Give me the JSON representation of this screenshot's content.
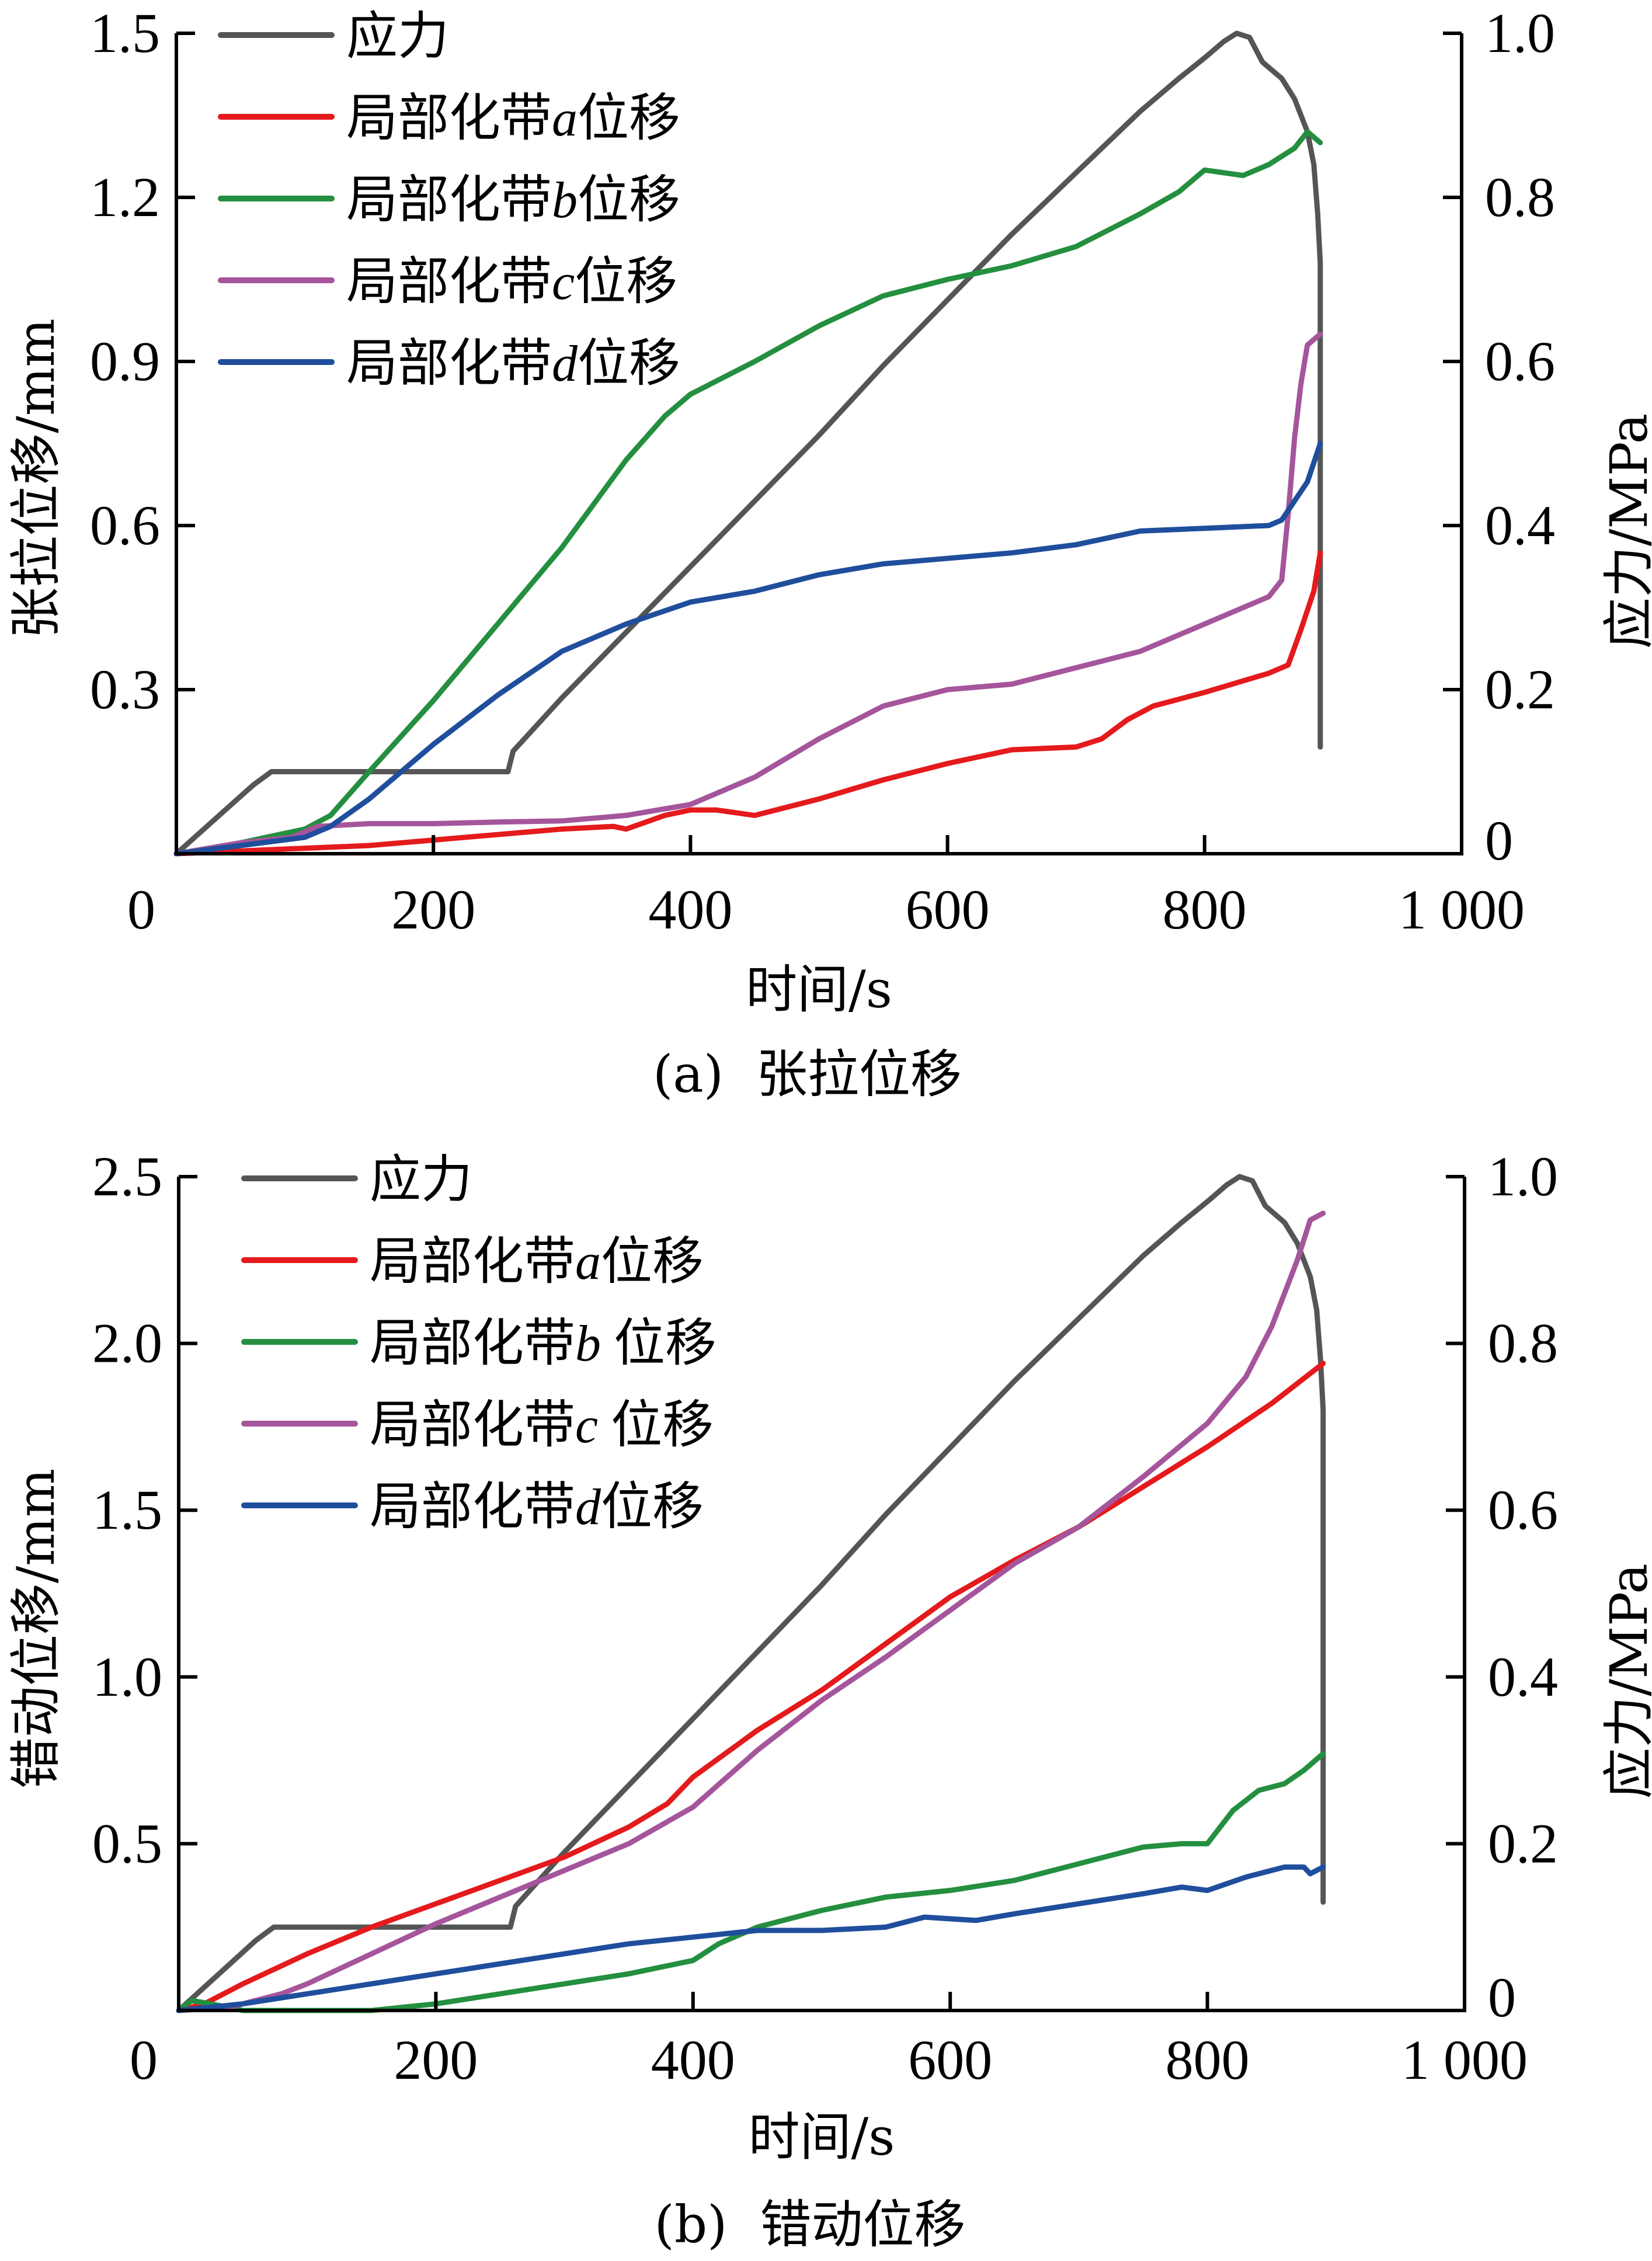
{
  "figure": {
    "panels": [
      "a",
      "b"
    ]
  },
  "chart_data": [
    {
      "type": "line",
      "id": "a",
      "title": "",
      "caption": "(a)  张拉位移",
      "xlabel": "时间/s",
      "ylabel": "张拉位移/mm",
      "y2label": "应力/MPa",
      "xlim": [
        0,
        1000
      ],
      "ylim": [
        0,
        1.5
      ],
      "y2lim": [
        0,
        1.0
      ],
      "xticks": [
        0,
        200,
        400,
        600,
        800,
        1000
      ],
      "xtick_labels": [
        "0",
        "200",
        "400",
        "600",
        "800",
        "1 000"
      ],
      "yticks": [
        0.3,
        0.6,
        0.9,
        1.2,
        1.5
      ],
      "ytick_labels": [
        "0.3",
        "0.6",
        "0.9",
        "1.2",
        "1.5"
      ],
      "y2ticks": [
        0,
        0.2,
        0.4,
        0.6,
        0.8,
        1.0
      ],
      "y2tick_labels": [
        "0",
        "0.2",
        "0.4",
        "0.6",
        "0.8",
        "1.0"
      ],
      "grid": false,
      "legend_position": "top-left",
      "series": [
        {
          "name": "应力",
          "legend_main": "应力",
          "legend_var": "",
          "legend_suffix": "",
          "axis": "right",
          "color": "#555555",
          "x": [
            0,
            20,
            40,
            60,
            74,
            90,
            150,
            200,
            258,
            262,
            300,
            350,
            400,
            450,
            500,
            550,
            600,
            650,
            700,
            750,
            780,
            800,
            815,
            825,
            835,
            845,
            860,
            870,
            880,
            885,
            888,
            890,
            890
          ],
          "y": [
            0,
            0.028,
            0.056,
            0.084,
            0.1,
            0.1,
            0.1,
            0.1,
            0.1,
            0.125,
            0.19,
            0.27,
            0.35,
            0.43,
            0.51,
            0.595,
            0.675,
            0.755,
            0.83,
            0.905,
            0.945,
            0.97,
            0.99,
            1.0,
            0.995,
            0.965,
            0.945,
            0.92,
            0.88,
            0.84,
            0.78,
            0.72,
            0.13
          ]
        },
        {
          "name": "局部化带a位移",
          "legend_main": "局部化带",
          "legend_var": "a",
          "legend_suffix": "位移",
          "axis": "left",
          "color": "#E41A1C",
          "x": [
            0,
            50,
            100,
            150,
            200,
            250,
            300,
            340,
            350,
            380,
            400,
            420,
            450,
            500,
            550,
            600,
            650,
            700,
            720,
            740,
            760,
            800,
            850,
            865,
            875,
            885,
            890
          ],
          "y": [
            0,
            0.005,
            0.01,
            0.015,
            0.025,
            0.035,
            0.045,
            0.05,
            0.045,
            0.07,
            0.08,
            0.08,
            0.07,
            0.1,
            0.135,
            0.165,
            0.19,
            0.195,
            0.21,
            0.245,
            0.27,
            0.295,
            0.33,
            0.345,
            0.41,
            0.48,
            0.55
          ]
        },
        {
          "name": "局部化带b位移",
          "legend_main": "局部化带",
          "legend_var": "b",
          "legend_suffix": "位移",
          "axis": "left",
          "color": "#248F3F",
          "x": [
            0,
            50,
            80,
            100,
            120,
            150,
            200,
            250,
            300,
            350,
            380,
            400,
            450,
            500,
            550,
            600,
            650,
            700,
            750,
            780,
            800,
            830,
            850,
            870,
            880,
            890
          ],
          "y": [
            0,
            0.02,
            0.035,
            0.045,
            0.07,
            0.15,
            0.28,
            0.42,
            0.56,
            0.72,
            0.8,
            0.84,
            0.9,
            0.965,
            1.02,
            1.05,
            1.075,
            1.11,
            1.17,
            1.21,
            1.25,
            1.24,
            1.26,
            1.29,
            1.32,
            1.3
          ]
        },
        {
          "name": "局部化带c位移",
          "legend_main": "局部化带",
          "legend_var": "c",
          "legend_suffix": "位移",
          "axis": "left",
          "color": "#A5559C",
          "x": [
            0,
            50,
            90,
            110,
            150,
            200,
            250,
            300,
            350,
            400,
            450,
            500,
            550,
            600,
            650,
            700,
            750,
            800,
            850,
            860,
            865,
            870,
            875,
            880,
            890
          ],
          "y": [
            0,
            0.02,
            0.03,
            0.05,
            0.055,
            0.055,
            0.058,
            0.06,
            0.07,
            0.09,
            0.14,
            0.21,
            0.27,
            0.3,
            0.31,
            0.34,
            0.37,
            0.42,
            0.47,
            0.5,
            0.62,
            0.76,
            0.86,
            0.93,
            0.95
          ]
        },
        {
          "name": "局部化带d位移",
          "legend_main": "局部化带",
          "legend_var": "d",
          "legend_suffix": "位移",
          "axis": "left",
          "color": "#1F4E9C",
          "x": [
            0,
            50,
            100,
            120,
            150,
            200,
            250,
            300,
            330,
            350,
            400,
            450,
            500,
            550,
            600,
            650,
            700,
            750,
            800,
            850,
            860,
            880,
            890
          ],
          "y": [
            0,
            0.015,
            0.03,
            0.05,
            0.1,
            0.2,
            0.29,
            0.37,
            0.4,
            0.42,
            0.46,
            0.48,
            0.51,
            0.53,
            0.54,
            0.55,
            0.565,
            0.59,
            0.595,
            0.6,
            0.61,
            0.68,
            0.75
          ]
        }
      ]
    },
    {
      "type": "line",
      "id": "b",
      "title": "",
      "caption": "(b)  错动位移",
      "xlabel": "时间/s",
      "ylabel": "错动位移/mm",
      "y2label": "应力/MPa",
      "xlim": [
        0,
        1000
      ],
      "ylim": [
        0,
        2.5
      ],
      "y2lim": [
        0,
        1.0
      ],
      "xticks": [
        0,
        200,
        400,
        600,
        800,
        1000
      ],
      "xtick_labels": [
        "0",
        "200",
        "400",
        "600",
        "800",
        "1 000"
      ],
      "yticks": [
        0.5,
        1.0,
        1.5,
        2.0,
        2.5
      ],
      "ytick_labels": [
        "0.5",
        "1.0",
        "1.5",
        "2.0",
        "2.5"
      ],
      "y2ticks": [
        0,
        0.2,
        0.4,
        0.6,
        0.8,
        1.0
      ],
      "y2tick_labels": [
        "0",
        "0.2",
        "0.4",
        "0.6",
        "0.8",
        "1.0"
      ],
      "grid": false,
      "legend_position": "top-left",
      "series": [
        {
          "name": "应力",
          "legend_main": "应力",
          "legend_var": "",
          "legend_suffix": "",
          "axis": "right",
          "color": "#555555",
          "x": [
            0,
            20,
            40,
            60,
            74,
            90,
            150,
            200,
            258,
            262,
            300,
            350,
            400,
            450,
            500,
            550,
            600,
            650,
            700,
            750,
            780,
            800,
            815,
            825,
            835,
            845,
            860,
            870,
            880,
            885,
            888,
            890,
            890
          ],
          "y": [
            0,
            0.028,
            0.056,
            0.084,
            0.1,
            0.1,
            0.1,
            0.1,
            0.1,
            0.125,
            0.19,
            0.27,
            0.35,
            0.43,
            0.51,
            0.595,
            0.675,
            0.755,
            0.83,
            0.905,
            0.945,
            0.97,
            0.99,
            1.0,
            0.995,
            0.965,
            0.945,
            0.92,
            0.88,
            0.84,
            0.78,
            0.72,
            0.13
          ]
        },
        {
          "name": "局部化带a位移",
          "legend_main": "局部化带",
          "legend_var": "a",
          "legend_suffix": "位移",
          "axis": "left",
          "color": "#E41A1C",
          "x": [
            0,
            20,
            50,
            100,
            150,
            200,
            250,
            300,
            350,
            380,
            400,
            450,
            500,
            550,
            600,
            650,
            700,
            750,
            800,
            850,
            890
          ],
          "y": [
            0,
            0.02,
            0.08,
            0.17,
            0.25,
            0.32,
            0.39,
            0.46,
            0.55,
            0.62,
            0.7,
            0.84,
            0.96,
            1.1,
            1.24,
            1.35,
            1.45,
            1.57,
            1.69,
            1.82,
            1.94
          ]
        },
        {
          "name": "局部化带b位移",
          "legend_main": "局部化带",
          "legend_var": "b ",
          "legend_suffix": "位移",
          "axis": "left",
          "color": "#248F3F",
          "x": [
            0,
            10,
            25,
            50,
            100,
            150,
            200,
            250,
            300,
            350,
            400,
            420,
            450,
            500,
            550,
            600,
            650,
            700,
            750,
            780,
            800,
            820,
            840,
            860,
            875,
            890
          ],
          "y": [
            0,
            0.03,
            0.02,
            0.0,
            -0.01,
            -0.01,
            0.02,
            0.05,
            0.08,
            0.11,
            0.15,
            0.2,
            0.25,
            0.3,
            0.34,
            0.36,
            0.39,
            0.44,
            0.49,
            0.5,
            0.5,
            0.6,
            0.66,
            0.68,
            0.72,
            0.77
          ]
        },
        {
          "name": "局部化带c位移",
          "legend_main": "局部化带",
          "legend_var": "c ",
          "legend_suffix": "位移",
          "axis": "left",
          "color": "#A5559C",
          "x": [
            0,
            40,
            80,
            100,
            150,
            200,
            250,
            300,
            350,
            400,
            450,
            500,
            550,
            600,
            650,
            700,
            750,
            800,
            830,
            850,
            870,
            880,
            890
          ],
          "y": [
            0,
            0.01,
            0.05,
            0.08,
            0.17,
            0.26,
            0.34,
            0.42,
            0.5,
            0.61,
            0.78,
            0.93,
            1.06,
            1.2,
            1.34,
            1.45,
            1.6,
            1.76,
            1.9,
            2.05,
            2.25,
            2.37,
            2.39
          ]
        },
        {
          "name": "局部化带d位移",
          "legend_main": "局部化带",
          "legend_var": "d",
          "legend_suffix": "位移",
          "axis": "left",
          "color": "#1F4E9C",
          "x": [
            0,
            50,
            100,
            150,
            200,
            250,
            300,
            350,
            400,
            450,
            500,
            550,
            580,
            620,
            650,
            700,
            750,
            780,
            800,
            830,
            860,
            875,
            880,
            890
          ],
          "y": [
            0,
            0.02,
            0.05,
            0.08,
            0.11,
            0.14,
            0.17,
            0.2,
            0.22,
            0.24,
            0.24,
            0.25,
            0.28,
            0.27,
            0.29,
            0.32,
            0.35,
            0.37,
            0.36,
            0.4,
            0.43,
            0.43,
            0.41,
            0.43
          ]
        }
      ]
    }
  ]
}
